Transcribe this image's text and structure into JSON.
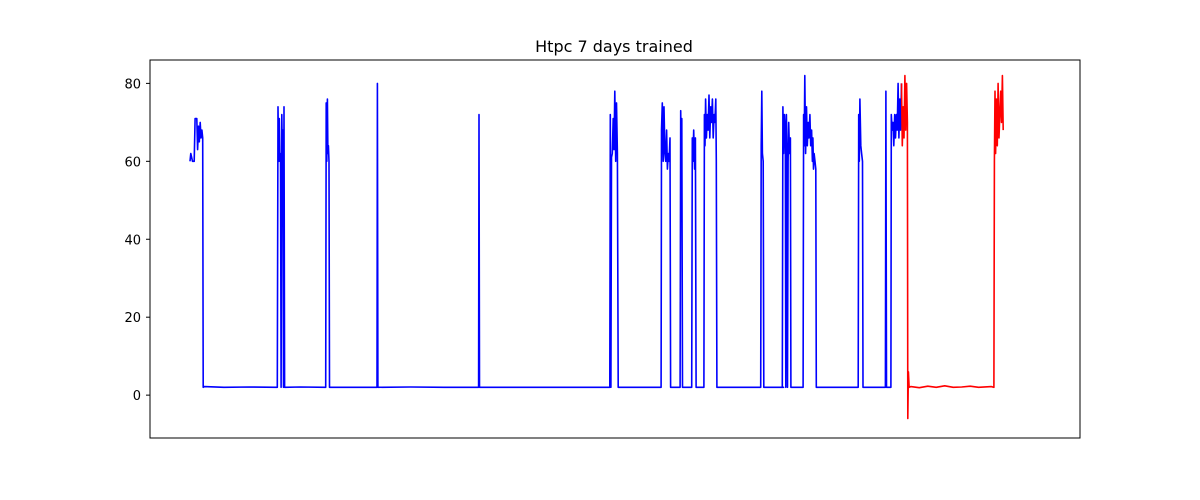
{
  "chart_data": {
    "type": "line",
    "title": "Htpc 7 days trained",
    "xlabel": "",
    "ylabel": "",
    "x_ticks_visible": false,
    "grid": false,
    "ylim": [
      -11,
      86
    ],
    "yticks": [
      0,
      20,
      40,
      60,
      80
    ],
    "xlim": [
      0,
      1000
    ],
    "series": [
      {
        "color": "#0000ff",
        "points": [
          [
            0,
            60
          ],
          [
            1,
            62
          ],
          [
            3,
            60
          ],
          [
            5,
            60
          ],
          [
            6,
            71
          ],
          [
            8,
            71
          ],
          [
            9,
            63
          ],
          [
            10,
            69
          ],
          [
            11,
            65
          ],
          [
            12,
            70
          ],
          [
            13,
            66
          ],
          [
            14,
            68
          ],
          [
            15,
            66
          ],
          [
            15.6,
            2
          ],
          [
            17,
            2.2
          ],
          [
            40,
            2
          ],
          [
            70,
            2.1
          ],
          [
            103,
            2
          ],
          [
            103.8,
            74
          ],
          [
            104.5,
            60
          ],
          [
            105.3,
            71
          ],
          [
            106,
            60
          ],
          [
            106.7,
            62
          ],
          [
            107.4,
            2
          ],
          [
            108.2,
            72
          ],
          [
            108.9,
            62
          ],
          [
            109.6,
            68
          ],
          [
            110.3,
            2
          ],
          [
            110.9,
            74
          ],
          [
            111.6,
            2
          ],
          [
            130,
            2.1
          ],
          [
            160,
            2
          ],
          [
            160.6,
            75
          ],
          [
            161.3,
            60
          ],
          [
            162,
            76
          ],
          [
            162.6,
            62
          ],
          [
            163.2,
            64
          ],
          [
            163.9,
            60
          ],
          [
            164.5,
            2
          ],
          [
            190,
            2
          ],
          [
            220.5,
            2
          ],
          [
            221,
            80
          ],
          [
            221.6,
            2
          ],
          [
            260,
            2.1
          ],
          [
            300,
            2
          ],
          [
            340.3,
            2
          ],
          [
            340.8,
            72
          ],
          [
            341.4,
            2
          ],
          [
            400,
            2
          ],
          [
            450,
            2
          ],
          [
            495,
            2
          ],
          [
            495.6,
            72
          ],
          [
            496.3,
            2
          ],
          [
            497,
            61
          ],
          [
            498,
            62
          ],
          [
            499,
            71
          ],
          [
            500,
            63
          ],
          [
            501,
            78
          ],
          [
            502,
            60
          ],
          [
            503,
            75
          ],
          [
            504,
            62
          ],
          [
            505,
            2
          ],
          [
            525,
            2
          ],
          [
            555.5,
            2
          ],
          [
            556,
            68
          ],
          [
            557,
            75
          ],
          [
            558,
            60
          ],
          [
            559,
            74
          ],
          [
            560,
            62
          ],
          [
            561,
            60
          ],
          [
            562,
            68
          ],
          [
            563,
            58
          ],
          [
            564,
            62
          ],
          [
            565,
            60
          ],
          [
            566,
            66
          ],
          [
            566.7,
            2
          ],
          [
            570,
            2
          ],
          [
            578,
            2
          ],
          [
            578.6,
            73
          ],
          [
            579.3,
            62
          ],
          [
            580,
            71
          ],
          [
            580.8,
            2
          ],
          [
            587,
            2
          ],
          [
            591,
            2
          ],
          [
            591.6,
            2
          ],
          [
            592.3,
            66
          ],
          [
            593,
            60
          ],
          [
            594,
            68
          ],
          [
            595,
            58
          ],
          [
            596,
            66
          ],
          [
            596.8,
            2
          ],
          [
            600,
            2
          ],
          [
            606,
            2
          ],
          [
            606.6,
            72
          ],
          [
            607.3,
            64
          ],
          [
            608,
            76
          ],
          [
            609,
            66
          ],
          [
            610,
            72
          ],
          [
            611,
            68
          ],
          [
            612,
            77
          ],
          [
            613,
            66
          ],
          [
            614,
            74
          ],
          [
            615,
            70
          ],
          [
            616,
            76
          ],
          [
            617,
            66
          ],
          [
            618,
            72
          ],
          [
            619,
            70
          ],
          [
            620,
            76
          ],
          [
            620.6,
            60
          ],
          [
            621.3,
            2
          ],
          [
            640,
            2
          ],
          [
            673,
            2
          ],
          [
            673.6,
            64
          ],
          [
            674.3,
            78
          ],
          [
            675,
            62
          ],
          [
            676,
            60
          ],
          [
            676.6,
            2
          ],
          [
            700,
            2
          ],
          [
            698.5,
            2
          ],
          [
            699.2,
            74
          ],
          [
            700,
            62
          ],
          [
            701,
            72
          ],
          [
            702,
            68
          ],
          [
            702.6,
            2
          ],
          [
            703.3,
            72
          ],
          [
            704,
            60
          ],
          [
            704.6,
            2
          ],
          [
            705.3,
            60
          ],
          [
            706,
            70
          ],
          [
            707,
            62
          ],
          [
            708,
            66
          ],
          [
            708.6,
            2
          ],
          [
            715,
            2
          ],
          [
            723,
            2
          ],
          [
            723.6,
            72
          ],
          [
            724.3,
            64
          ],
          [
            725,
            82
          ],
          [
            726,
            62
          ],
          [
            727,
            74
          ],
          [
            728,
            64
          ],
          [
            729,
            70
          ],
          [
            730,
            66
          ],
          [
            731,
            72
          ],
          [
            732,
            64
          ],
          [
            733,
            68
          ],
          [
            734,
            60
          ],
          [
            734.6,
            66
          ],
          [
            735.3,
            58
          ],
          [
            736,
            62
          ],
          [
            737,
            60
          ],
          [
            738,
            58
          ],
          [
            738.6,
            2
          ],
          [
            760,
            2
          ],
          [
            788,
            2
          ],
          [
            788.6,
            72
          ],
          [
            789.3,
            60
          ],
          [
            790,
            76
          ],
          [
            791,
            64
          ],
          [
            792,
            62
          ],
          [
            793,
            60
          ],
          [
            793.6,
            2
          ],
          [
            815,
            2
          ],
          [
            820,
            2
          ],
          [
            820.6,
            78
          ],
          [
            821.3,
            2
          ],
          [
            823,
            2
          ],
          [
            826.5,
            2
          ],
          [
            827,
            72
          ],
          [
            828,
            68
          ],
          [
            829,
            70
          ],
          [
            830,
            64
          ],
          [
            831,
            72
          ],
          [
            832,
            66
          ],
          [
            833,
            72
          ],
          [
            834,
            68
          ],
          [
            835,
            80
          ],
          [
            836,
            66
          ],
          [
            837,
            76
          ],
          [
            838,
            68
          ],
          [
            839,
            80
          ]
        ]
      },
      {
        "color": "#ff0000",
        "points": [
          [
            839,
            80
          ],
          [
            840,
            64
          ],
          [
            841,
            74
          ],
          [
            842,
            66
          ],
          [
            843,
            82
          ],
          [
            844,
            68
          ],
          [
            845,
            80
          ],
          [
            846,
            70
          ],
          [
            846.5,
            -6
          ],
          [
            847.2,
            6
          ],
          [
            848,
            2
          ],
          [
            850,
            2.2
          ],
          [
            860,
            1.9
          ],
          [
            870,
            2.3
          ],
          [
            880,
            2
          ],
          [
            890,
            2.4
          ],
          [
            900,
            2
          ],
          [
            910,
            2.1
          ],
          [
            920,
            2.3
          ],
          [
            930,
            2
          ],
          [
            945,
            2.2
          ],
          [
            948,
            2
          ],
          [
            948.6,
            60
          ],
          [
            949.3,
            78
          ],
          [
            950,
            62
          ],
          [
            951,
            76
          ],
          [
            952,
            64
          ],
          [
            953,
            80
          ],
          [
            954,
            66
          ],
          [
            955,
            72
          ],
          [
            956,
            78
          ],
          [
            957,
            70
          ],
          [
            958,
            82
          ],
          [
            959,
            68
          ]
        ]
      }
    ]
  }
}
